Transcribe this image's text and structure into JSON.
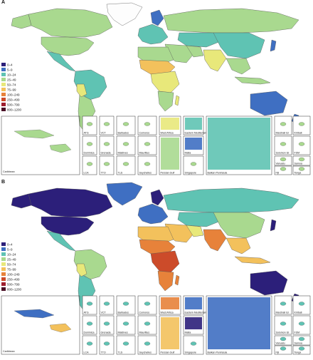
{
  "legend_colors": [
    "#2c1f7a",
    "#3f6fc2",
    "#5fc3b3",
    "#a9d98f",
    "#e8e87a",
    "#f3c15c",
    "#e7823a",
    "#cc4b2a",
    "#9e1d2d",
    "#4a0f26"
  ],
  "panel_a": {
    "label": "A",
    "legend": [
      "0–4",
      "5–9",
      "10–24",
      "25–49",
      "50–74",
      "75–99",
      "100–249",
      "250–499",
      "500–799",
      "800–1200"
    ],
    "insets": {
      "caribbean": "Caribbean",
      "atg": "ATG",
      "vct": "VCT",
      "barbados": "Barbados",
      "comoros": "Comoros",
      "west_africa": "West Africa",
      "eastern_med": "Eastern Mediterranean",
      "dominica": "Dominica",
      "grenada": "Grenada",
      "maldives": "Maldives",
      "mauritius": "Mauritius",
      "persian_gulf": "Persian Gulf",
      "malta": "Malta",
      "lca": "LCA",
      "tto": "TTO",
      "tls": "TLS",
      "seychelles": "Seychelles",
      "singapore": "Singapore",
      "balkan": "Balkan Peninsula",
      "marshall": "Marshall Isl",
      "kiribati": "Kiribati",
      "solomon": "Solomon Isl",
      "fsm": "FSM",
      "vanuatu": "Vanuatu",
      "samoa": "Samoa",
      "fiji": "Fiji",
      "tonga": "Tonga"
    }
  },
  "panel_b": {
    "label": "B",
    "legend": [
      "0–4",
      "5–9",
      "10–24",
      "25–49",
      "50–74",
      "75–99",
      "100–249",
      "250–499",
      "500–799",
      "800–1200"
    ],
    "insets": {
      "caribbean": "Caribbean",
      "atg": "ATG",
      "vct": "VCT",
      "barbados": "Barbados",
      "comoros": "Comoros",
      "west_africa": "West Africa",
      "eastern_med": "Eastern Mediterranean",
      "dominica": "Dominica",
      "grenada": "Grenada",
      "maldives": "Maldives",
      "mauritius": "Mauritius",
      "persian_gulf": "Persian Gulf",
      "malta": "Malta",
      "lca": "LCA",
      "tto": "TTO",
      "tls": "TLS",
      "seychelles": "Seychelles",
      "singapore": "Singapore",
      "balkan": "Balkan Peninsula",
      "marshall": "Marshall Isl",
      "kiribati": "Kiribati",
      "solomon": "Solomon Isl",
      "fsm": "FSM",
      "vanuatu": "Vanuatu",
      "samoa": "Samoa",
      "fiji": "Fiji",
      "tonga": "Tonga"
    }
  }
}
